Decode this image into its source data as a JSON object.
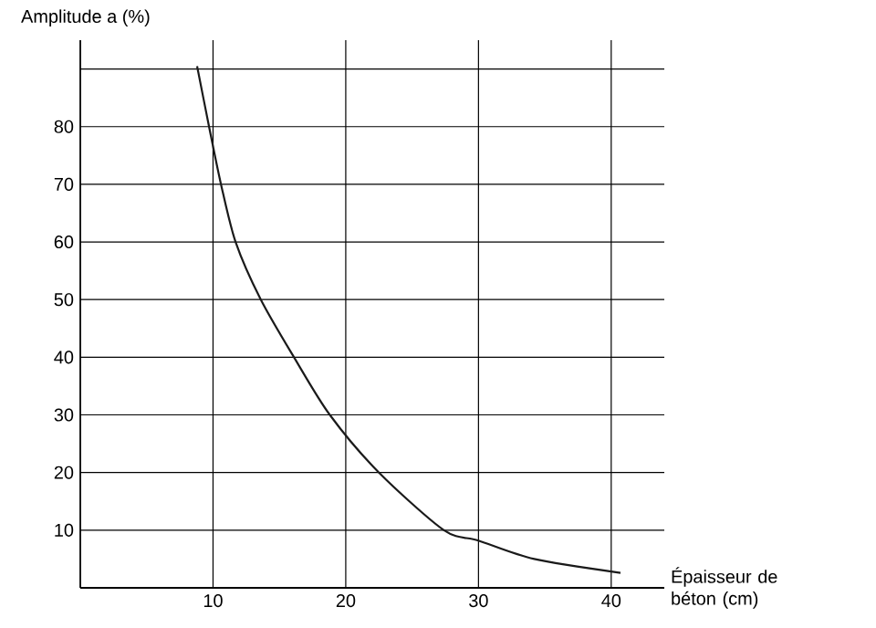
{
  "chart_data": {
    "type": "line",
    "xlabel": "Épaisseur de béton (cm)",
    "ylabel": "Amplitude a (%)",
    "x": [
      8.8,
      9.7,
      10.6,
      11.7,
      13.6,
      16.1,
      18.8,
      22.5,
      27.4,
      30,
      34.2,
      40.7
    ],
    "series": [
      {
        "color": "#1a1a1a",
        "values": [
          90.5,
          80,
          70,
          60,
          50,
          40,
          30,
          20,
          10,
          8.2,
          5,
          2.6
        ]
      }
    ],
    "xlim": [
      0,
      44
    ],
    "ylim": [
      0,
      95
    ],
    "xticks": [
      10,
      20,
      30,
      40
    ],
    "yticks": [
      10,
      20,
      30,
      40,
      50,
      60,
      70,
      80,
      {
        "value": 90,
        "label": null
      }
    ],
    "grid": true,
    "marker": "none",
    "line_style": "solid"
  }
}
